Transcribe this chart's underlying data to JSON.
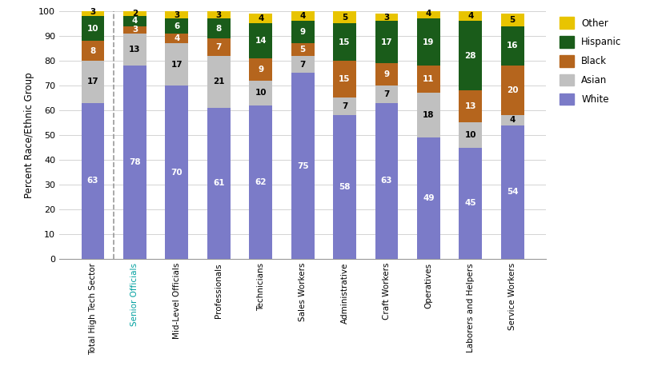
{
  "categories": [
    "Total High Tech Sector",
    "Senior Officials",
    "Mid-Level Officials",
    "Professionals",
    "Technicians",
    "Sales Workers",
    "Administrative",
    "Craft Workers",
    "Operatives",
    "Laborers and Helpers",
    "Service Workers"
  ],
  "white": [
    63,
    78,
    70,
    61,
    62,
    75,
    58,
    63,
    49,
    45,
    54
  ],
  "asian": [
    17,
    13,
    17,
    21,
    10,
    7,
    7,
    7,
    18,
    10,
    4
  ],
  "black": [
    8,
    3,
    4,
    7,
    9,
    5,
    15,
    9,
    11,
    13,
    20
  ],
  "hispanic": [
    10,
    4,
    6,
    8,
    14,
    9,
    15,
    17,
    19,
    28,
    16
  ],
  "other": [
    3,
    2,
    3,
    3,
    4,
    4,
    5,
    3,
    4,
    4,
    5
  ],
  "colors": {
    "white": "#7b7bc8",
    "asian": "#c0c0c0",
    "black": "#b5651d",
    "hispanic": "#1a5c1a",
    "other": "#e8c400"
  },
  "ylabel": "Percent Race/Ethnic Group",
  "ylim": [
    0,
    100
  ],
  "yticks": [
    0,
    10,
    20,
    30,
    40,
    50,
    60,
    70,
    80,
    90,
    100
  ],
  "senior_officials_color": "#00a0a0",
  "bar_width": 0.55,
  "label_fontsize": 7.5
}
